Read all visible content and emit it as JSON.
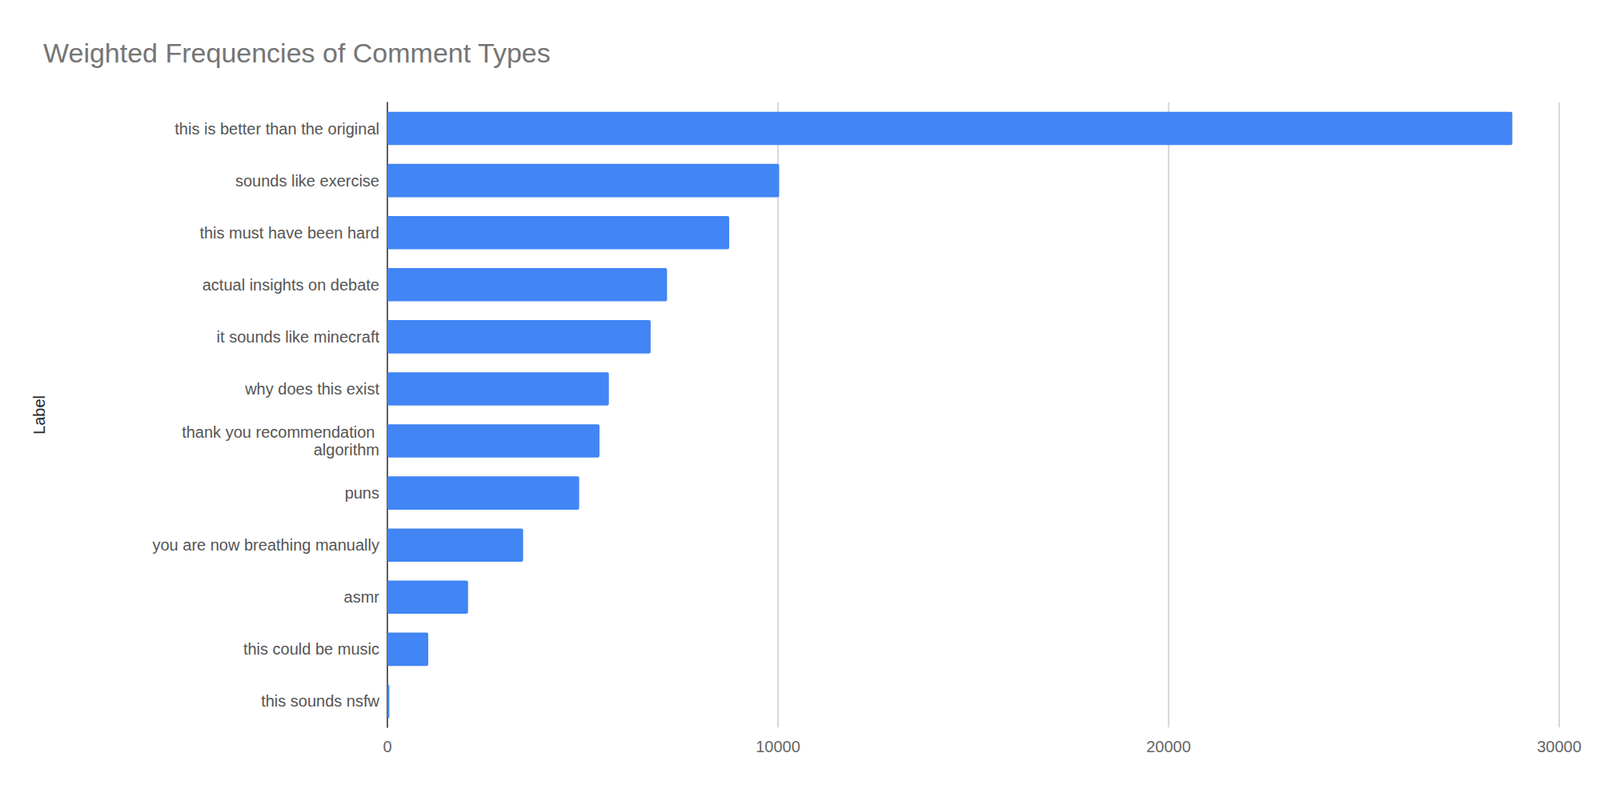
{
  "chart_data": {
    "type": "bar",
    "title": "Weighted Frequencies of Comment Types",
    "y_label": "Label",
    "orientation": "horizontal",
    "categories": [
      "this is better than the original",
      "sounds like exercise",
      "this must have been hard",
      "actual insights on debate",
      "it sounds like minecraft",
      "why does this exist",
      "thank you recommendation algorithm",
      "puns",
      "you are now breathing manually",
      "asmr",
      "this could be music",
      "this sounds nsfw"
    ],
    "values": [
      28800,
      10030,
      8750,
      7160,
      6740,
      5670,
      5430,
      4910,
      3475,
      2065,
      1045,
      50
    ],
    "color": "#4285f4",
    "xlim": [
      0,
      30000
    ],
    "xticks": [
      0,
      10000,
      20000,
      30000
    ],
    "grid": true
  }
}
